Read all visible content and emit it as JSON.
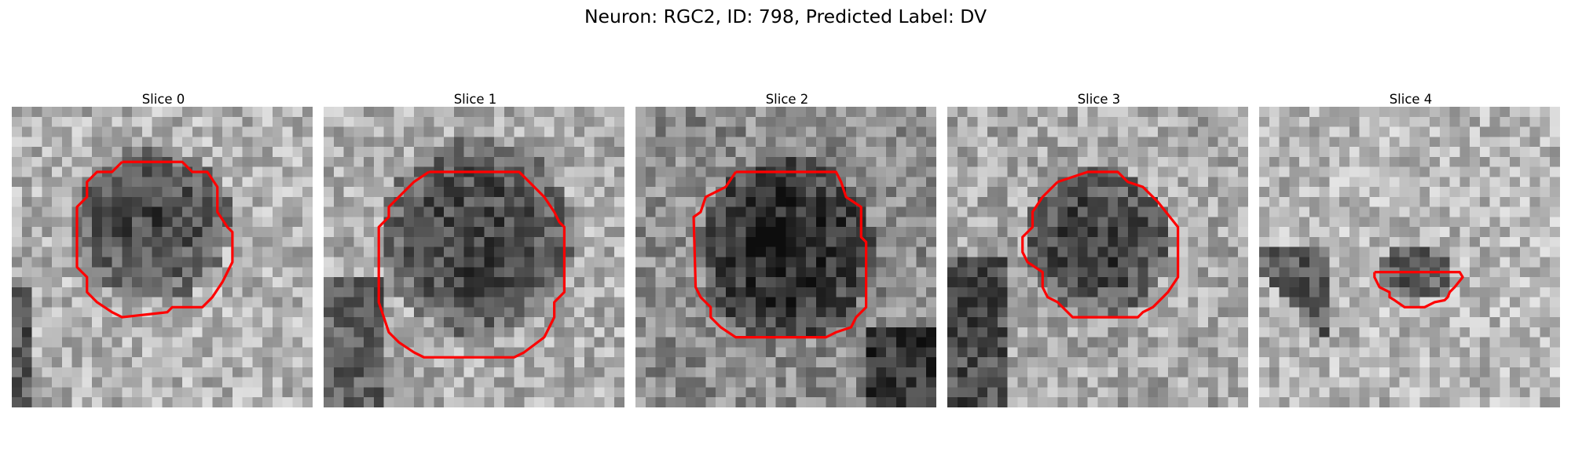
{
  "figure": {
    "title": "Neuron: RGC2, ID: 798, Predicted Label: DV"
  },
  "slices": [
    {
      "title": "Slice 0",
      "blob": [
        0.46,
        0.39,
        0.27,
        0.26
      ],
      "base": 0.7
    },
    {
      "title": "Slice 1",
      "blob": [
        0.51,
        0.43,
        0.32,
        0.33
      ],
      "base": 0.68
    },
    {
      "title": "Slice 2",
      "blob": [
        0.5,
        0.47,
        0.29,
        0.31
      ],
      "base": 0.55
    },
    {
      "title": "Slice 3",
      "blob": [
        0.5,
        0.45,
        0.25,
        0.24
      ],
      "base": 0.66
    },
    {
      "title": "Slice 4",
      "blob": [
        0.52,
        0.55,
        0.13,
        0.1
      ],
      "base": 0.72
    }
  ],
  "colors": {
    "contour": "#ff0000",
    "background": "#ffffff"
  }
}
